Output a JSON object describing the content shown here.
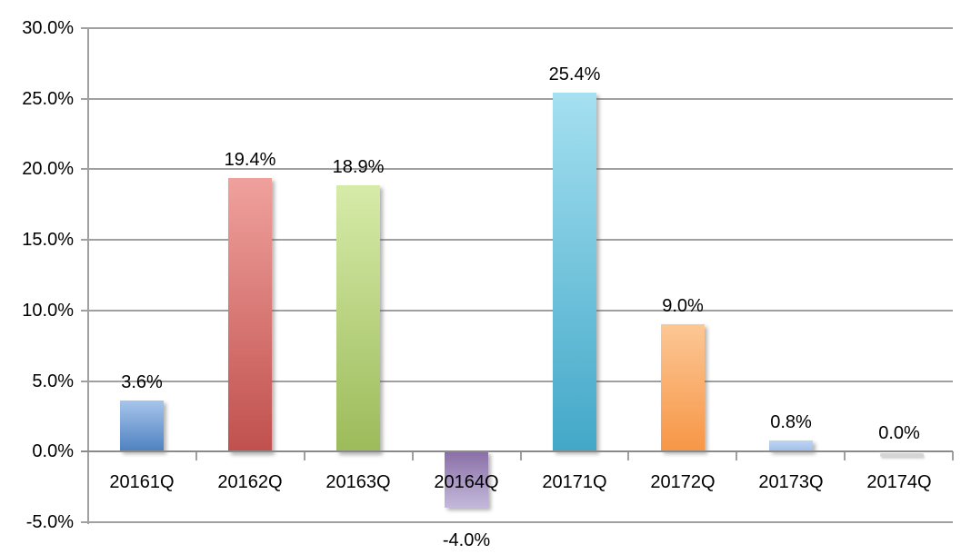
{
  "chart_data": {
    "type": "bar",
    "title": "",
    "xlabel": "",
    "ylabel": "",
    "categories": [
      "20161Q",
      "20162Q",
      "20163Q",
      "20164Q",
      "20171Q",
      "20172Q",
      "20173Q",
      "20174Q"
    ],
    "values": [
      3.6,
      19.4,
      18.9,
      -4.0,
      25.4,
      9.0,
      0.8,
      0.0
    ],
    "value_labels": [
      "3.6%",
      "19.4%",
      "18.9%",
      "-4.0%",
      "25.4%",
      "9.0%",
      "0.8%",
      "0.0%"
    ],
    "bar_gradients": [
      {
        "top": "#a7c5ec",
        "bottom": "#4e81c0"
      },
      {
        "top": "#f0a19d",
        "bottom": "#c0504d"
      },
      {
        "top": "#d6eba9",
        "bottom": "#9cbb5a"
      },
      {
        "top": "#8a6fa6",
        "bottom": "#c3b9db"
      },
      {
        "top": "#a5e0f0",
        "bottom": "#42a8c8"
      },
      {
        "top": "#fcc795",
        "bottom": "#f79646"
      },
      {
        "top": "#bed5f3",
        "bottom": "#9fbfe9"
      },
      {
        "top": "#e8e8e8",
        "bottom": "#d0d0d0"
      }
    ],
    "y_axis": {
      "min": -5,
      "max": 30,
      "step": 5,
      "tick_labels": [
        "30.0%",
        "25.0%",
        "20.0%",
        "15.0%",
        "10.0%",
        "5.0%",
        "0.0%",
        "-5.0%"
      ],
      "tick_values": [
        30,
        25,
        20,
        15,
        10,
        5,
        0,
        -5
      ]
    },
    "grid": true,
    "legend": "none",
    "colors": {
      "gridline": "#a0a0a0",
      "axis": "#a0a0a0",
      "zero_line": "#8a8a8a",
      "text": "#000000",
      "background": "#ffffff"
    }
  }
}
